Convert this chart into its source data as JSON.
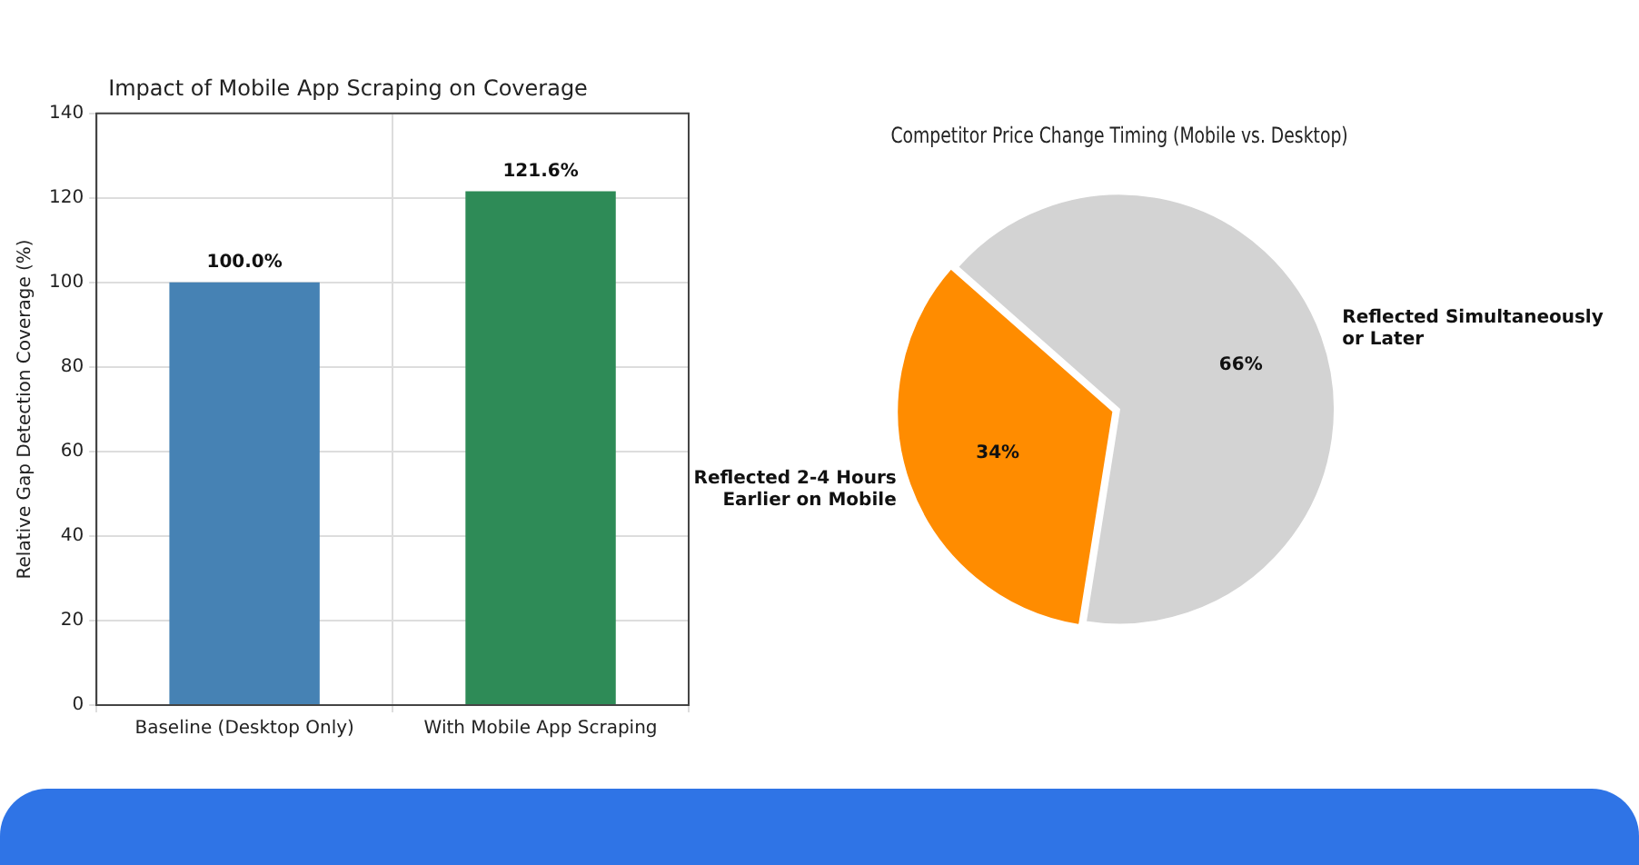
{
  "chart_data": [
    {
      "type": "bar",
      "title": "Impact of Mobile App Scraping on Coverage",
      "ylabel": "Relative Gap Detection Coverage (%)",
      "categories": [
        "Baseline (Desktop Only)",
        "With Mobile App Scraping"
      ],
      "values": [
        100.0,
        121.6
      ],
      "colors": [
        "#4682b4",
        "#2e8b57"
      ],
      "value_labels": [
        "100.0%",
        "121.6%"
      ],
      "ylim": [
        0,
        140
      ],
      "yticks": [
        0,
        20,
        40,
        60,
        80,
        100,
        120,
        140
      ],
      "grid": true,
      "legend": false
    },
    {
      "type": "pie",
      "title": "Competitor Price Change Timing (Mobile vs. Desktop)",
      "categories": [
        "Reflected 2-4 Hours\nEarlier on Mobile",
        "Reflected Simultaneously\nor Later"
      ],
      "values": [
        34,
        66
      ],
      "colors": [
        "#ff8c00",
        "#d3d3d3"
      ],
      "value_labels": [
        "34%",
        "66%"
      ],
      "legend": false
    }
  ]
}
